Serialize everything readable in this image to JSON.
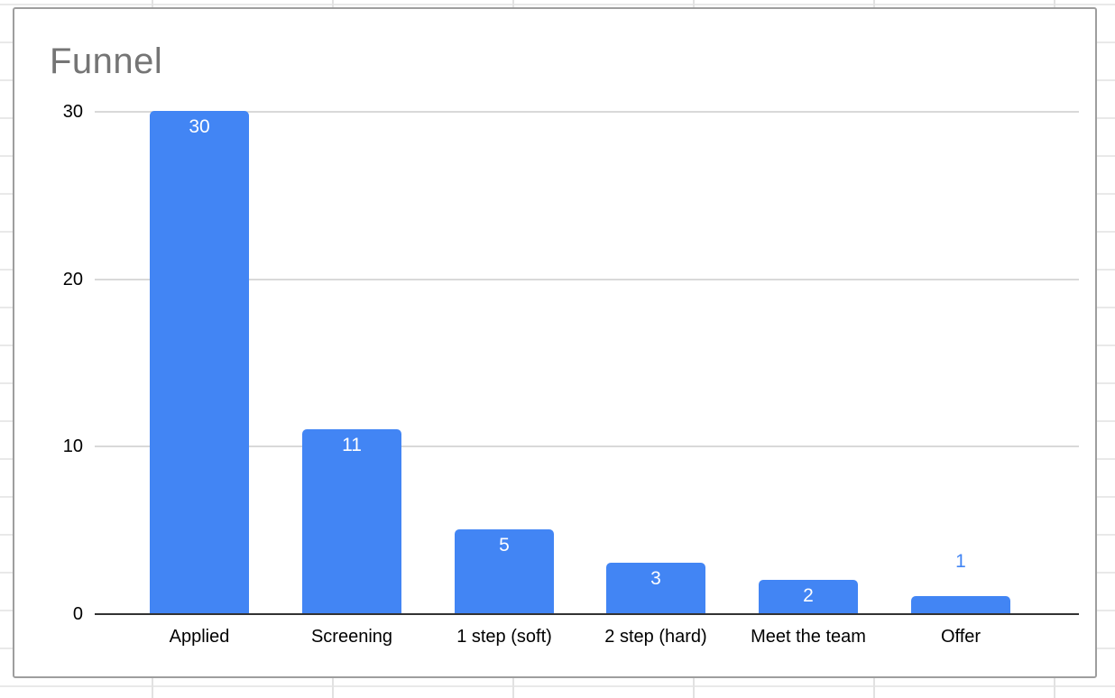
{
  "chart_data": {
    "type": "bar",
    "title": "Funnel",
    "categories": [
      "Applied",
      "Screening",
      "1 step (soft)",
      "2 step (hard)",
      "Meet the team",
      "Offer"
    ],
    "values": [
      30,
      11,
      5,
      3,
      2,
      1
    ],
    "data_labels": [
      "30",
      "11",
      "5",
      "3",
      "2",
      "1"
    ],
    "label_inside": [
      true,
      true,
      true,
      true,
      true,
      false
    ],
    "y_ticks": [
      0,
      10,
      20,
      30
    ],
    "ylim": [
      0,
      30
    ],
    "xlabel": "",
    "ylabel": "",
    "grid": true,
    "legend": "none",
    "colors": {
      "bar": "#4285f4",
      "value_label_inside": "#ffffff",
      "value_label_outside": "#4285f4",
      "title": "#757575",
      "axis_labels": "#000000",
      "gridline": "#d9d9d9",
      "axis_line": "#333333",
      "card_border": "#9e9e9e",
      "card_background": "#ffffff",
      "sheet_gridline": "#e2e2e2"
    }
  }
}
